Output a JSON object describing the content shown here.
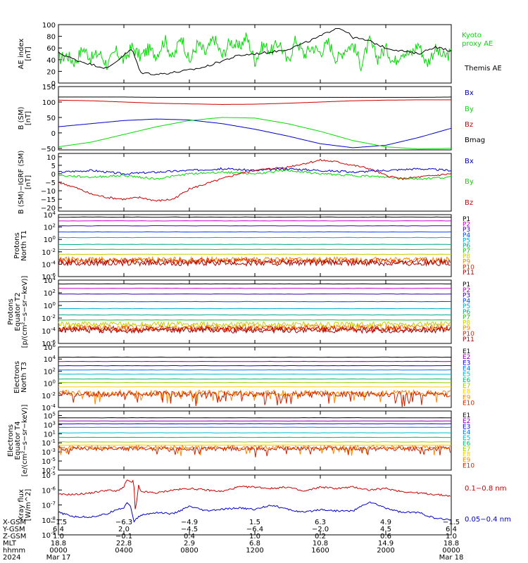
{
  "colors": {
    "black": "#000000",
    "green": "#00dd00",
    "blue": "#0000cc",
    "red": "#cc0000",
    "P": [
      "#000000",
      "#cc00cc",
      "#3300aa",
      "#0044ff",
      "#00aacc",
      "#00aa88",
      "#22bb22",
      "#cccc00",
      "#ff8800",
      "#dd2200",
      "#aa0000"
    ],
    "E": [
      "#000000",
      "#8800aa",
      "#1100cc",
      "#0077ff",
      "#00bbcc",
      "#00bb66",
      "#99cc00",
      "#ffcc00",
      "#ff8800",
      "#cc2200",
      "#aa0000"
    ]
  },
  "chart_data": [
    {
      "id": "ae",
      "type": "line",
      "ylabel": "AE index [nT]",
      "ylim": [
        0,
        100
      ],
      "yticks": [
        "0",
        "20",
        "40",
        "60",
        "80",
        "100"
      ],
      "series": [
        {
          "name": "Kyoto proxy AE",
          "color": "#00dd00",
          "label_lines": [
            "Kyoto",
            "proxy AE"
          ],
          "x": [
            0,
            0.5,
            1,
            1.5,
            2,
            2.5,
            3,
            3.5,
            4,
            4.5,
            5,
            5.5,
            6,
            6.5,
            7,
            7.5,
            8,
            8.5,
            9,
            9.5,
            10,
            10.5,
            11,
            11.5,
            12,
            12.5,
            13,
            13.5,
            14,
            14.5,
            15,
            15.5,
            16,
            16.5,
            17,
            17.5,
            18,
            18.5,
            19,
            19.5,
            20,
            20.5,
            21,
            21.5,
            22,
            22.5,
            23,
            23.5,
            24
          ],
          "y": [
            40,
            48,
            35,
            60,
            42,
            52,
            30,
            55,
            38,
            62,
            45,
            58,
            48,
            75,
            40,
            82,
            35,
            68,
            50,
            78,
            45,
            72,
            60,
            80,
            38,
            65,
            55,
            70,
            35,
            75,
            48,
            62,
            52,
            70,
            40,
            58,
            66,
            30,
            72,
            42,
            60,
            35,
            55,
            48,
            68,
            32,
            58,
            45,
            50
          ]
        },
        {
          "name": "Themis AE",
          "color": "#000000",
          "label_lines": [
            "Themis AE"
          ],
          "x": [
            0,
            1,
            2,
            3,
            4,
            4.5,
            5,
            6,
            7,
            8,
            9,
            10,
            11,
            12,
            13,
            14,
            15,
            16,
            17,
            17.5,
            18,
            19,
            20,
            21,
            22,
            23,
            24
          ],
          "y": [
            52,
            40,
            32,
            25,
            48,
            58,
            18,
            15,
            18,
            22,
            28,
            38,
            47,
            50,
            53,
            58,
            68,
            80,
            95,
            90,
            78,
            72,
            60,
            55,
            50,
            62,
            55
          ]
        }
      ]
    },
    {
      "id": "bsm",
      "type": "line",
      "ylabel": "B (SM) [nT]",
      "ylim": [
        -55,
        150
      ],
      "yticks": [
        "−50",
        "0",
        "50",
        "100",
        "150"
      ],
      "series": [
        {
          "name": "Bx",
          "color": "#0000cc",
          "x": [
            0,
            2,
            4,
            6,
            8,
            10,
            12,
            14,
            16,
            18,
            20,
            22,
            24
          ],
          "y": [
            20,
            30,
            40,
            45,
            42,
            30,
            12,
            -10,
            -35,
            -48,
            -40,
            -15,
            15
          ]
        },
        {
          "name": "By",
          "color": "#00dd00",
          "x": [
            0,
            2,
            4,
            6,
            8,
            10,
            12,
            14,
            16,
            18,
            20,
            22,
            24
          ],
          "y": [
            -45,
            -30,
            -5,
            20,
            40,
            50,
            48,
            30,
            5,
            -25,
            -45,
            -52,
            -50
          ]
        },
        {
          "name": "Bz",
          "color": "#cc0000",
          "x": [
            0,
            2,
            4,
            6,
            8,
            10,
            12,
            14,
            16,
            18,
            20,
            22,
            24
          ],
          "y": [
            106,
            104,
            100,
            96,
            94,
            92,
            93,
            96,
            100,
            104,
            106,
            107,
            107
          ]
        },
        {
          "name": "Bmag",
          "color": "#000000",
          "x": [
            0,
            2,
            4,
            6,
            8,
            10,
            12,
            14,
            16,
            18,
            20,
            22,
            24
          ],
          "y": [
            116,
            116,
            116,
            115,
            115,
            115,
            115,
            115,
            115,
            115,
            115,
            115,
            116
          ]
        }
      ]
    },
    {
      "id": "bigrf",
      "type": "line",
      "ylabel": "B (SM)−IGRF (SM) [nT]",
      "ylim": [
        -22,
        12
      ],
      "yticks": [
        "−20",
        "−15",
        "−10",
        "−5",
        "0",
        "5",
        "10"
      ],
      "series": [
        {
          "name": "Bx",
          "color": "#0000cc",
          "x": [
            0,
            2,
            4,
            6,
            8,
            10,
            12,
            14,
            16,
            18,
            20,
            22,
            24
          ],
          "y": [
            1,
            2,
            0,
            1,
            2,
            3,
            2,
            3,
            2,
            1,
            2,
            3,
            2
          ]
        },
        {
          "name": "By",
          "color": "#00dd00",
          "x": [
            0,
            2,
            4,
            6,
            8,
            10,
            12,
            14,
            16,
            18,
            20,
            22,
            24
          ],
          "y": [
            -1,
            -2,
            -1,
            -3,
            0,
            1,
            0,
            2,
            0,
            -1,
            -2,
            -3,
            -2
          ]
        },
        {
          "name": "Bz",
          "color": "#cc0000",
          "x": [
            0,
            1,
            2,
            3,
            4,
            5,
            6,
            7,
            8,
            9,
            10,
            11,
            12,
            13,
            14,
            15,
            16,
            17,
            18,
            19,
            20,
            21,
            22,
            23,
            24
          ],
          "y": [
            -5,
            -8,
            -12,
            -14,
            -15,
            -14,
            -16,
            -15,
            -9,
            -6,
            -3,
            0,
            2,
            3,
            4,
            6,
            8,
            7,
            5,
            3,
            -1,
            -3,
            -2,
            -1,
            0
          ]
        }
      ]
    },
    {
      "id": "p_t1",
      "type": "line",
      "ylabel_lines": [
        "Protons",
        "North T1"
      ],
      "log": true,
      "ylim_exp": [
        -6,
        4
      ],
      "labels": [
        "P1",
        "P2",
        "P3",
        "P4",
        "P5",
        "P6",
        "P7",
        "P8",
        "P9",
        "P10",
        "P11"
      ],
      "levels_exp": [
        3.6,
        3.0,
        2.2,
        1.2,
        0.3,
        -0.8,
        -1.6,
        -2.4,
        -3.3,
        -3.5,
        -3.8
      ],
      "noisy_from": 8
    },
    {
      "id": "p_t2",
      "type": "line",
      "ylabel_lines": [
        "Protons",
        "Equator T2",
        "[p/(cm²−s−sr−keV)]"
      ],
      "log": true,
      "ylim_exp": [
        -6,
        4
      ],
      "labels": [
        "P1",
        "P2",
        "P3",
        "P4",
        "P5",
        "P6",
        "P7",
        "P8",
        "P9",
        "P10",
        "P11"
      ],
      "levels_exp": [
        3.4,
        2.7,
        1.8,
        0.6,
        -0.5,
        -1.5,
        -2.3,
        -3.0,
        -3.5,
        -3.7,
        -3.9
      ],
      "noisy_from": 7
    },
    {
      "id": "e_t3",
      "type": "line",
      "ylabel_lines": [
        "Electrons",
        "North T3"
      ],
      "log": true,
      "ylim_exp": [
        -4,
        6
      ],
      "labels": [
        "E1",
        "E2",
        "E3",
        "E4",
        "E5",
        "E6",
        "E7",
        "E8",
        "E9",
        "E10"
      ],
      "levels_exp": [
        4.3,
        3.6,
        2.9,
        2.2,
        1.5,
        0.7,
        0.1,
        -0.6,
        -1.6,
        -1.8
      ],
      "noisy_from": 8
    },
    {
      "id": "e_t4",
      "type": "line",
      "ylabel_lines": [
        "Electrons",
        "Equator T4",
        "[e/(cm²−s−sr−keV)]"
      ],
      "log": true,
      "ylim_exp": [
        -7,
        6
      ],
      "labels": [
        "E1",
        "E2",
        "E3",
        "E4",
        "E5",
        "E6",
        "E7",
        "E8",
        "E9",
        "E10"
      ],
      "levels_exp": [
        4.5,
        3.8,
        3.2,
        2.4,
        1.2,
        0.2,
        -0.8,
        -1.5,
        -2.0,
        -2.3
      ],
      "noisy_from": 8
    },
    {
      "id": "xray",
      "type": "line",
      "ylabel": "Xray flux [W/m^2]",
      "log": true,
      "ylim_exp": [
        -9,
        -5
      ],
      "series": [
        {
          "name": "0.1−0.8 nm",
          "color": "#cc0000",
          "x": [
            0,
            1,
            2,
            3,
            3.5,
            4,
            4.2,
            4.4,
            4.6,
            4.7,
            4.9,
            5,
            6,
            7,
            8,
            9,
            10,
            11,
            12,
            13,
            14,
            15,
            16,
            17,
            18,
            19,
            20,
            21,
            22,
            23,
            24
          ],
          "logy": [
            -6.3,
            -6.3,
            -6.2,
            -6.0,
            -6.1,
            -5.8,
            -5.3,
            -5.5,
            -5.4,
            -7.5,
            -5.7,
            -6.1,
            -6.2,
            -6.0,
            -5.9,
            -6.0,
            -6.1,
            -5.8,
            -5.8,
            -5.9,
            -5.8,
            -6.1,
            -5.8,
            -5.9,
            -5.8,
            -6.0,
            -5.9,
            -6.1,
            -6.2,
            -6.3,
            -6.4
          ]
        },
        {
          "name": "0.05−0.4 nm",
          "color": "#0000cc",
          "x": [
            0,
            1,
            2,
            3,
            3.5,
            4,
            4.2,
            4.4,
            4.6,
            5,
            6,
            7,
            8,
            9,
            10,
            11,
            12,
            13,
            14,
            15,
            16,
            17,
            18,
            19,
            20,
            21,
            22,
            23,
            24
          ],
          "logy": [
            -7.5,
            -7.8,
            -7.8,
            -7.6,
            -7.3,
            -7.2,
            -6.8,
            -7.1,
            -8.1,
            -7.7,
            -7.5,
            -7.6,
            -7.1,
            -7.4,
            -7.3,
            -7.2,
            -7.3,
            -7.0,
            -7.3,
            -7.5,
            -7.3,
            -7.4,
            -7.4,
            -6.8,
            -7.2,
            -7.5,
            -7.5,
            -7.9,
            -8.0
          ]
        }
      ]
    }
  ],
  "orbit": {
    "labels": [
      "X-GSM",
      "Y-GSM",
      "Z-GSM",
      "MLT",
      "hhmm",
      "2024"
    ],
    "columns": [
      [
        "−1.5",
        "6.4",
        "1.0",
        "18.8",
        "0000",
        "Mar 17"
      ],
      [
        "−6.3",
        "2.0",
        "−0.1",
        "22.8",
        "0400",
        ""
      ],
      [
        "−4.9",
        "−4.5",
        "0.4",
        "2.9",
        "0800",
        ""
      ],
      [
        "1.5",
        "−6.4",
        "1.0",
        "6.8",
        "1200",
        ""
      ],
      [
        "6.3",
        "−2.0",
        "0.2",
        "10.8",
        "1600",
        ""
      ],
      [
        "4.9",
        "4.5",
        "0.6",
        "14.9",
        "2000",
        ""
      ],
      [
        "−1.5",
        "6.4",
        "1.0",
        "18.8",
        "0000",
        "Mar 18"
      ]
    ]
  }
}
